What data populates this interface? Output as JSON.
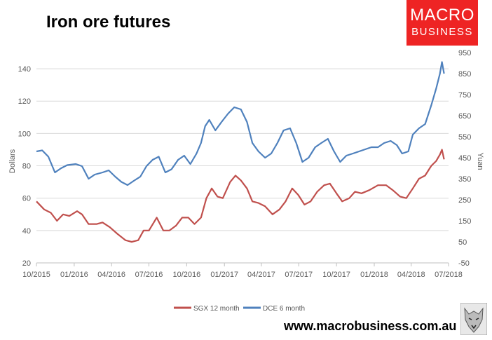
{
  "header": {
    "title": "Iron ore futures"
  },
  "brand": {
    "logo_line1": "MACRO",
    "logo_line2": "BUSINESS",
    "website": "www.macrobusiness.com.au",
    "accent": "#ee2424"
  },
  "chart_data": {
    "type": "line",
    "title": "Iron ore futures",
    "ylabel": "Dollars",
    "y2label": "Yuan",
    "x_ticks": [
      "10/2015",
      "01/2016",
      "04/2016",
      "07/2016",
      "10/2016",
      "01/2017",
      "04/2017",
      "07/2017",
      "10/2017",
      "01/2018",
      "04/2018",
      "07/2018"
    ],
    "xlim": [
      "2015-10-01",
      "2018-07-01"
    ],
    "ylim": [
      20,
      150
    ],
    "y_ticks": [
      20,
      40,
      60,
      80,
      100,
      120,
      140
    ],
    "y2lim": [
      -50,
      950
    ],
    "y2_ticks": [
      -50,
      50,
      150,
      250,
      350,
      450,
      550,
      650,
      750,
      850,
      950
    ],
    "grid": true,
    "legend_position": "bottom",
    "series": [
      {
        "name": "SGX 12 month",
        "axis": "left",
        "color": "#c0504d",
        "points": [
          [
            "2015-10-01",
            58
          ],
          [
            "2015-10-20",
            53
          ],
          [
            "2015-11-05",
            51
          ],
          [
            "2015-11-20",
            46
          ],
          [
            "2015-12-05",
            50
          ],
          [
            "2015-12-20",
            49
          ],
          [
            "2016-01-08",
            52
          ],
          [
            "2016-01-20",
            50
          ],
          [
            "2016-02-05",
            44
          ],
          [
            "2016-02-25",
            44
          ],
          [
            "2016-03-10",
            45
          ],
          [
            "2016-03-28",
            42
          ],
          [
            "2016-04-15",
            38
          ],
          [
            "2016-05-05",
            34
          ],
          [
            "2016-05-20",
            33
          ],
          [
            "2016-06-05",
            34
          ],
          [
            "2016-06-18",
            40
          ],
          [
            "2016-07-01",
            40
          ],
          [
            "2016-07-20",
            48
          ],
          [
            "2016-08-05",
            40
          ],
          [
            "2016-08-20",
            40
          ],
          [
            "2016-09-05",
            43
          ],
          [
            "2016-09-20",
            48
          ],
          [
            "2016-10-05",
            48
          ],
          [
            "2016-10-20",
            44
          ],
          [
            "2016-11-05",
            48
          ],
          [
            "2016-11-18",
            60
          ],
          [
            "2016-12-01",
            66
          ],
          [
            "2016-12-15",
            61
          ],
          [
            "2016-12-28",
            60
          ],
          [
            "2017-01-15",
            70
          ],
          [
            "2017-01-28",
            74
          ],
          [
            "2017-02-10",
            71
          ],
          [
            "2017-02-25",
            66
          ],
          [
            "2017-03-10",
            58
          ],
          [
            "2017-03-25",
            57
          ],
          [
            "2017-04-10",
            55
          ],
          [
            "2017-04-28",
            50
          ],
          [
            "2017-05-15",
            53
          ],
          [
            "2017-05-30",
            58
          ],
          [
            "2017-06-15",
            66
          ],
          [
            "2017-06-30",
            62
          ],
          [
            "2017-07-15",
            56
          ],
          [
            "2017-07-30",
            58
          ],
          [
            "2017-08-15",
            64
          ],
          [
            "2017-09-01",
            68
          ],
          [
            "2017-09-15",
            69
          ],
          [
            "2017-10-01",
            63
          ],
          [
            "2017-10-15",
            58
          ],
          [
            "2017-11-01",
            60
          ],
          [
            "2017-11-15",
            64
          ],
          [
            "2017-12-01",
            63
          ],
          [
            "2017-12-20",
            65
          ],
          [
            "2018-01-10",
            68
          ],
          [
            "2018-01-30",
            68
          ],
          [
            "2018-02-15",
            65
          ],
          [
            "2018-03-05",
            61
          ],
          [
            "2018-03-20",
            60
          ],
          [
            "2018-04-05",
            66
          ],
          [
            "2018-04-20",
            72
          ],
          [
            "2018-05-05",
            74
          ],
          [
            "2018-05-20",
            80
          ],
          [
            "2018-06-01",
            83
          ],
          [
            "2018-06-10",
            87
          ],
          [
            "2018-06-15",
            90
          ],
          [
            "2018-06-20",
            84
          ]
        ]
      },
      {
        "name": "DCE 6 month",
        "axis": "right",
        "color": "#4f81bd",
        "points": [
          [
            "2015-10-01",
            480
          ],
          [
            "2015-10-15",
            485
          ],
          [
            "2015-10-30",
            455
          ],
          [
            "2015-11-15",
            380
          ],
          [
            "2015-11-30",
            400
          ],
          [
            "2015-12-15",
            415
          ],
          [
            "2016-01-05",
            420
          ],
          [
            "2016-01-20",
            410
          ],
          [
            "2016-02-05",
            350
          ],
          [
            "2016-02-20",
            370
          ],
          [
            "2016-03-10",
            380
          ],
          [
            "2016-03-25",
            390
          ],
          [
            "2016-04-10",
            360
          ],
          [
            "2016-04-25",
            335
          ],
          [
            "2016-05-10",
            320
          ],
          [
            "2016-05-25",
            340
          ],
          [
            "2016-06-10",
            360
          ],
          [
            "2016-06-25",
            410
          ],
          [
            "2016-07-10",
            440
          ],
          [
            "2016-07-25",
            455
          ],
          [
            "2016-08-10",
            380
          ],
          [
            "2016-08-25",
            395
          ],
          [
            "2016-09-10",
            440
          ],
          [
            "2016-09-25",
            460
          ],
          [
            "2016-10-10",
            420
          ],
          [
            "2016-10-25",
            470
          ],
          [
            "2016-11-05",
            520
          ],
          [
            "2016-11-15",
            600
          ],
          [
            "2016-11-25",
            630
          ],
          [
            "2016-12-10",
            580
          ],
          [
            "2016-12-25",
            620
          ],
          [
            "2017-01-10",
            660
          ],
          [
            "2017-01-25",
            690
          ],
          [
            "2017-02-10",
            680
          ],
          [
            "2017-02-25",
            620
          ],
          [
            "2017-03-10",
            520
          ],
          [
            "2017-03-25",
            480
          ],
          [
            "2017-04-10",
            450
          ],
          [
            "2017-04-25",
            470
          ],
          [
            "2017-05-10",
            520
          ],
          [
            "2017-05-25",
            580
          ],
          [
            "2017-06-10",
            590
          ],
          [
            "2017-06-25",
            520
          ],
          [
            "2017-07-10",
            430
          ],
          [
            "2017-07-25",
            450
          ],
          [
            "2017-08-10",
            500
          ],
          [
            "2017-08-25",
            520
          ],
          [
            "2017-09-10",
            540
          ],
          [
            "2017-09-25",
            480
          ],
          [
            "2017-10-10",
            430
          ],
          [
            "2017-10-25",
            460
          ],
          [
            "2017-11-10",
            470
          ],
          [
            "2017-11-25",
            480
          ],
          [
            "2017-12-10",
            490
          ],
          [
            "2017-12-25",
            500
          ],
          [
            "2018-01-10",
            500
          ],
          [
            "2018-01-25",
            520
          ],
          [
            "2018-02-10",
            530
          ],
          [
            "2018-02-25",
            510
          ],
          [
            "2018-03-10",
            470
          ],
          [
            "2018-03-25",
            480
          ],
          [
            "2018-04-05",
            560
          ],
          [
            "2018-04-20",
            590
          ],
          [
            "2018-05-05",
            610
          ],
          [
            "2018-05-20",
            700
          ],
          [
            "2018-06-01",
            780
          ],
          [
            "2018-06-10",
            850
          ],
          [
            "2018-06-15",
            905
          ],
          [
            "2018-06-20",
            850
          ]
        ]
      }
    ]
  }
}
